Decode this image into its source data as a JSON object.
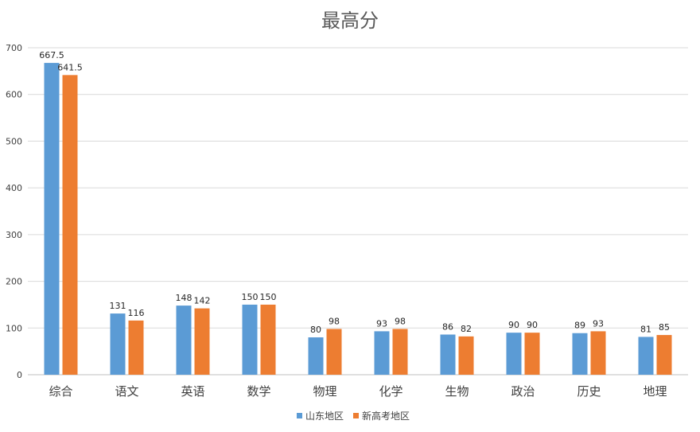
{
  "chart_data": {
    "type": "bar",
    "title": "最高分",
    "categories": [
      "综合",
      "语文",
      "英语",
      "数学",
      "物理",
      "化学",
      "生物",
      "政治",
      "历史",
      "地理"
    ],
    "series": [
      {
        "name": "山东地区",
        "color": "#5b9bd5",
        "values": [
          667.5,
          131,
          148,
          150,
          80,
          93,
          86,
          90,
          89,
          81
        ],
        "labels": [
          "667.5",
          "131",
          "148",
          "150",
          "80",
          "93",
          "86",
          "90",
          "89",
          "81"
        ]
      },
      {
        "name": "新高考地区",
        "color": "#ed7d31",
        "values": [
          641.5,
          116,
          142,
          150,
          98,
          98,
          82,
          90,
          93,
          85
        ],
        "labels": [
          "641.5",
          "116",
          "142",
          "150",
          "98",
          "98",
          "82",
          "90",
          "93",
          "85"
        ]
      }
    ],
    "yticks": [
      "0",
      "100",
      "200",
      "300",
      "400",
      "500",
      "600",
      "700"
    ],
    "ylim": [
      0,
      700
    ],
    "grid": true,
    "legend_position": "bottom",
    "xlabel": "",
    "ylabel": ""
  }
}
